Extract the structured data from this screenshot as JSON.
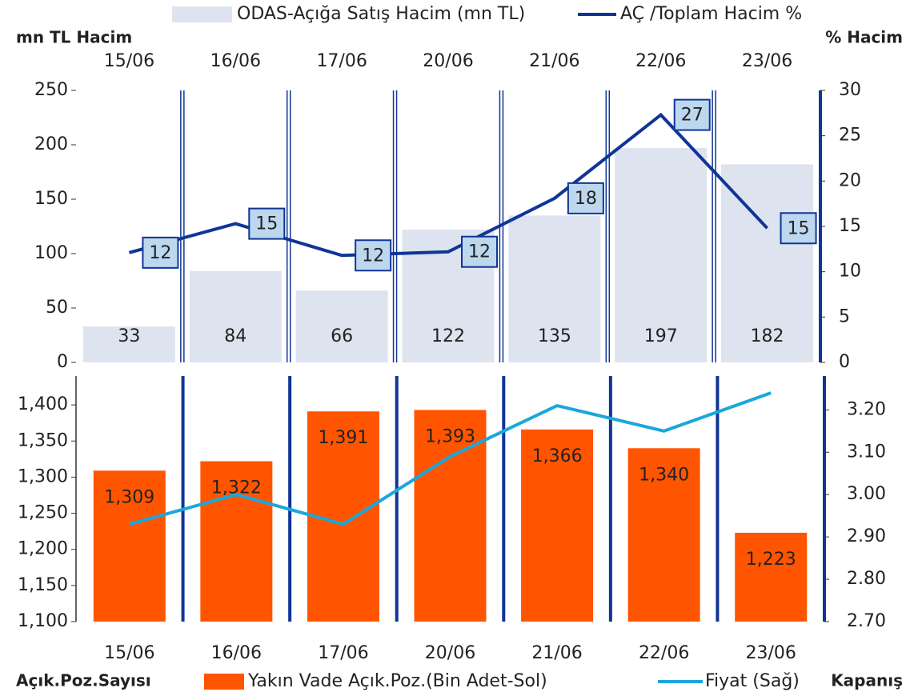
{
  "chart_data": [
    {
      "type": "bar",
      "y_label": "mn TL Hacim",
      "y2_label": "% Hacim",
      "categories": [
        "15/06",
        "16/06",
        "17/06",
        "20/06",
        "21/06",
        "22/06",
        "23/06"
      ],
      "series": [
        {
          "name": "ODAS-Açığa Satış Hacim (mn TL)",
          "color": "#dde3ef",
          "values": [
            33,
            84,
            66,
            122,
            135,
            197,
            182
          ]
        },
        {
          "name": "AÇ /Toplam Hacim %",
          "color": "#0f3596",
          "type": "line",
          "axis": "y2",
          "label_color": "#bdd7ee",
          "values": [
            12.1,
            15.3,
            11.8,
            12.2,
            18.1,
            27.3,
            14.8
          ],
          "value_labels": [
            "12",
            "15",
            "12",
            "12",
            "18",
            "27",
            "15"
          ]
        }
      ],
      "ylim": [
        0,
        250
      ],
      "yticks": [
        0,
        50,
        100,
        150,
        200,
        250
      ],
      "y2lim": [
        0,
        30
      ],
      "y2ticks": [
        0,
        5,
        10,
        15,
        20,
        25,
        30
      ]
    },
    {
      "type": "bar",
      "y_label": "Açık.Poz.Sayısı",
      "y2_label": "Kapanış",
      "categories": [
        "15/06",
        "16/06",
        "17/06",
        "20/06",
        "21/06",
        "22/06",
        "23/06"
      ],
      "series": [
        {
          "name": "Yakın Vade Açık.Poz.(Bin Adet-Sol)",
          "color": "#ff5500",
          "values": [
            1309,
            1322,
            1391,
            1393,
            1366,
            1340,
            1223
          ],
          "value_labels": [
            "1,309",
            "1,322",
            "1,391",
            "1,393",
            "1,366",
            "1,340",
            "1,223"
          ]
        },
        {
          "name": "Fiyat (Sağ)",
          "color": "#1aa7dc",
          "type": "line",
          "axis": "y2",
          "values": [
            2.93,
            3.0,
            2.93,
            3.09,
            3.21,
            3.15,
            3.24
          ]
        }
      ],
      "ylim": [
        1100,
        1440
      ],
      "yticks": [
        {
          "value": 1100,
          "label": "1,100"
        },
        {
          "value": 1150,
          "label": "1,150"
        },
        {
          "value": 1200,
          "label": "1,200"
        },
        {
          "value": 1250,
          "label": "1,250"
        },
        {
          "value": 1300,
          "label": "1,300"
        },
        {
          "value": 1350,
          "label": "1,350"
        },
        {
          "value": 1400,
          "label": "1,400"
        }
      ],
      "y2lim": [
        2.7,
        3.28
      ],
      "y2ticks": [
        {
          "value": 2.7,
          "label": "2.70"
        },
        {
          "value": 2.8,
          "label": "2.80"
        },
        {
          "value": 2.9,
          "label": "2.90"
        },
        {
          "value": 3.0,
          "label": "3.00"
        },
        {
          "value": 3.1,
          "label": "3.10"
        },
        {
          "value": 3.2,
          "label": "3.20"
        }
      ],
      "y2_color": "#c55a11"
    }
  ]
}
